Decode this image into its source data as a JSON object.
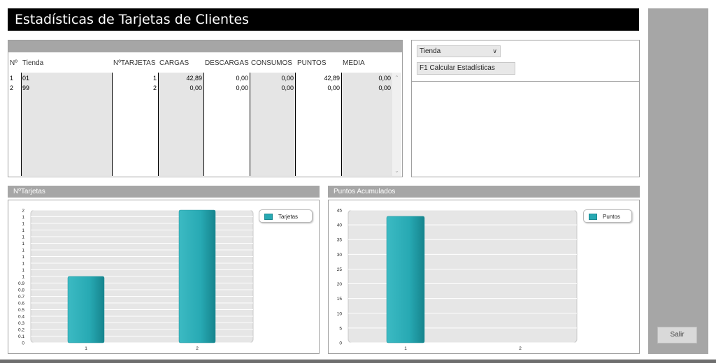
{
  "window": {
    "title": "Estadísticas de Tarjetas de Clientes"
  },
  "buttons": {
    "salir": "Salir",
    "calcular": "F1 Calcular Estadísticas"
  },
  "filter": {
    "selected": "Tienda"
  },
  "grid": {
    "headers": [
      "Nº",
      "Tienda",
      "NºTARJETAS",
      "CARGAS",
      "DESCARGAS",
      "CONSUMOS",
      "PUNTOS",
      "MEDIA"
    ],
    "rows": [
      [
        "1",
        "01",
        "1",
        "42,89",
        "0,00",
        "0,00",
        "42,89",
        "0,00"
      ],
      [
        "2",
        "99",
        "2",
        "0,00",
        "0,00",
        "0,00",
        "0,00",
        "0,00"
      ]
    ]
  },
  "colors": {
    "bar": "#27a9b3",
    "plot_bg": "#e6e6e6",
    "title_bg": "#000000",
    "panel_gray": "#a6a6a6"
  },
  "chart_data": [
    {
      "type": "bar",
      "title": "NºTarjetas",
      "categories": [
        "1",
        "2"
      ],
      "series": [
        {
          "name": "Tarjetas",
          "values": [
            1,
            2
          ]
        }
      ],
      "y_ticks": [
        "0",
        "0.1",
        "0.2",
        "0.3",
        "0.4",
        "0.5",
        "0.6",
        "0.7",
        "0.8",
        "0.9",
        "1",
        "1",
        "1",
        "1",
        "1",
        "1",
        "1",
        "1",
        "1",
        "1",
        "2"
      ],
      "ylim": [
        0,
        2
      ],
      "legend": "top-right"
    },
    {
      "type": "bar",
      "title": "Puntos Acumulados",
      "categories": [
        "1",
        "2"
      ],
      "series": [
        {
          "name": "Puntos",
          "values": [
            42.89,
            0
          ]
        }
      ],
      "y_ticks": [
        "0",
        "5",
        "10",
        "15",
        "20",
        "25",
        "30",
        "35",
        "40",
        "45"
      ],
      "ylim": [
        0,
        45
      ],
      "legend": "top-right"
    }
  ]
}
